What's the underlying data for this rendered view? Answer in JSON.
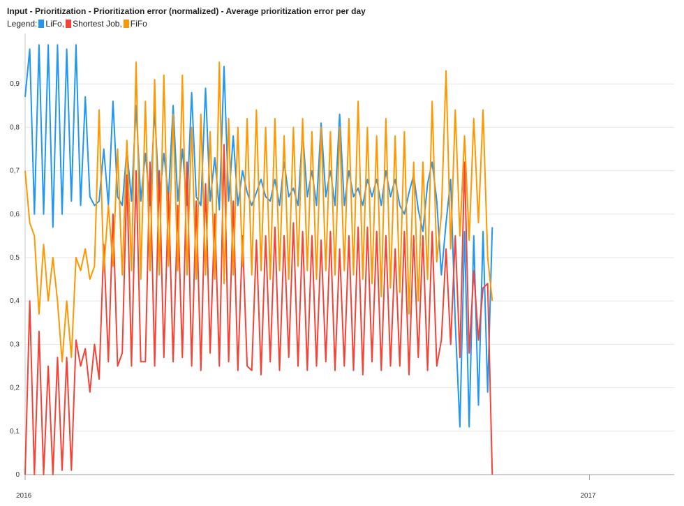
{
  "chart_data": {
    "type": "line",
    "title": "Input  - Prioritization  - Prioritization error (normalized) - Average prioritization error per day",
    "legend_prefix": "Legend:",
    "legend_placement": "top-left",
    "ylim": [
      0,
      1
    ],
    "yticks": [
      {
        "value": 0,
        "label": "0"
      },
      {
        "value": 0.1,
        "label": "0,1"
      },
      {
        "value": 0.2,
        "label": "0,2"
      },
      {
        "value": 0.3,
        "label": "0,3"
      },
      {
        "value": 0.4,
        "label": "0,4"
      },
      {
        "value": 0.5,
        "label": "0,5"
      },
      {
        "value": 0.6,
        "label": "0,6"
      },
      {
        "value": 0.7,
        "label": "0,7"
      },
      {
        "value": 0.8,
        "label": "0,8"
      },
      {
        "value": 0.9,
        "label": "0,9"
      }
    ],
    "grid": true,
    "xlim": [
      "2016-01-01",
      "2017-02-25"
    ],
    "xticks": [
      {
        "value": "2016-01-01",
        "label": "2016"
      },
      {
        "value": "2017-01-01",
        "label": "2017"
      }
    ],
    "series": [
      {
        "name": "LiFo",
        "color": "#2196f3",
        "start": "2016-01-01",
        "step_days": 3,
        "values": [
          0.87,
          0.98,
          0.6,
          0.99,
          0.6,
          0.99,
          0.57,
          0.99,
          0.6,
          0.98,
          0.63,
          0.99,
          0.62,
          0.87,
          0.64,
          0.62,
          0.63,
          0.75,
          0.62,
          0.86,
          0.64,
          0.62,
          0.75,
          0.63,
          0.85,
          0.63,
          0.74,
          0.62,
          0.84,
          0.63,
          0.74,
          0.64,
          0.85,
          0.63,
          0.75,
          0.62,
          0.88,
          0.64,
          0.62,
          0.89,
          0.63,
          0.73,
          0.61,
          0.94,
          0.63,
          0.78,
          0.62,
          0.7,
          0.65,
          0.62,
          0.65,
          0.68,
          0.64,
          0.63,
          0.68,
          0.62,
          0.72,
          0.64,
          0.66,
          0.62,
          0.79,
          0.64,
          0.7,
          0.62,
          0.81,
          0.64,
          0.7,
          0.62,
          0.83,
          0.62,
          0.7,
          0.64,
          0.66,
          0.62,
          0.68,
          0.64,
          0.68,
          0.62,
          0.7,
          0.64,
          0.68,
          0.62,
          0.6,
          0.65,
          0.69,
          0.61,
          0.56,
          0.67,
          0.72,
          0.63,
          0.46,
          0.58,
          0.68,
          0.35,
          0.11,
          0.56,
          0.11,
          0.55,
          0.16,
          0.56,
          0.19,
          0.57
        ]
      },
      {
        "name": "Shortest Job",
        "color": "#f44336",
        "start": "2016-01-01",
        "step_days": 3,
        "values": [
          0.0,
          0.4,
          0.0,
          0.33,
          0.0,
          0.25,
          0.0,
          0.27,
          0.01,
          0.27,
          0.01,
          0.31,
          0.25,
          0.29,
          0.19,
          0.3,
          0.22,
          0.53,
          0.26,
          0.6,
          0.25,
          0.28,
          0.69,
          0.25,
          0.7,
          0.26,
          0.26,
          0.72,
          0.25,
          0.7,
          0.27,
          0.65,
          0.26,
          0.62,
          0.27,
          0.72,
          0.25,
          0.63,
          0.24,
          0.67,
          0.28,
          0.6,
          0.25,
          0.76,
          0.26,
          0.63,
          0.24,
          0.55,
          0.25,
          0.24,
          0.54,
          0.23,
          0.55,
          0.26,
          0.57,
          0.24,
          0.55,
          0.27,
          0.58,
          0.25,
          0.56,
          0.24,
          0.55,
          0.25,
          0.54,
          0.26,
          0.56,
          0.24,
          0.52,
          0.25,
          0.55,
          0.24,
          0.57,
          0.23,
          0.57,
          0.26,
          0.56,
          0.24,
          0.55,
          0.25,
          0.52,
          0.25,
          0.56,
          0.23,
          0.55,
          0.27,
          0.55,
          0.24,
          0.56,
          0.25,
          0.31,
          0.52,
          0.3,
          0.55,
          0.27,
          0.72,
          0.28,
          0.47,
          0.31,
          0.43,
          0.44,
          0.0
        ]
      },
      {
        "name": "FiFo",
        "color": "#ff9800",
        "start": "2016-01-01",
        "step_days": 3,
        "values": [
          0.7,
          0.58,
          0.55,
          0.37,
          0.53,
          0.4,
          0.5,
          0.4,
          0.26,
          0.4,
          0.27,
          0.5,
          0.47,
          0.52,
          0.45,
          0.48,
          0.84,
          0.47,
          0.62,
          0.48,
          0.75,
          0.46,
          0.77,
          0.47,
          0.95,
          0.45,
          0.86,
          0.47,
          0.91,
          0.46,
          0.92,
          0.48,
          0.83,
          0.47,
          0.92,
          0.46,
          0.8,
          0.45,
          0.83,
          0.46,
          0.79,
          0.45,
          0.95,
          0.44,
          0.82,
          0.46,
          0.8,
          0.48,
          0.82,
          0.46,
          0.84,
          0.47,
          0.8,
          0.45,
          0.82,
          0.47,
          0.78,
          0.45,
          0.8,
          0.48,
          0.82,
          0.47,
          0.79,
          0.45,
          0.8,
          0.47,
          0.79,
          0.46,
          0.8,
          0.47,
          0.82,
          0.46,
          0.86,
          0.45,
          0.8,
          0.44,
          0.78,
          0.41,
          0.82,
          0.43,
          0.78,
          0.42,
          0.79,
          0.37,
          0.72,
          0.4,
          0.72,
          0.45,
          0.86,
          0.49,
          0.6,
          0.93,
          0.52,
          0.84,
          0.55,
          0.78,
          0.54,
          0.82,
          0.58,
          0.84,
          0.5,
          0.4
        ]
      }
    ]
  }
}
